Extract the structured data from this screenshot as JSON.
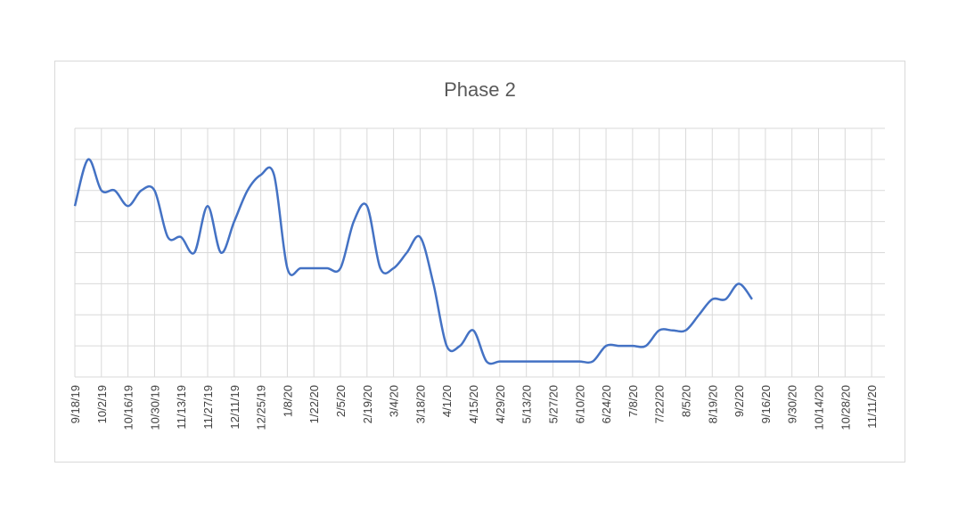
{
  "chart_data": {
    "type": "line",
    "title": "Phase 2",
    "xlabel": "",
    "ylabel": "",
    "grid": true,
    "legend": "none",
    "x_ticks": [
      "9/18/19",
      "10/2/19",
      "10/16/19",
      "10/30/19",
      "11/13/19",
      "11/27/19",
      "12/11/19",
      "12/25/19",
      "1/8/20",
      "1/22/20",
      "2/5/20",
      "2/19/20",
      "3/4/20",
      "3/18/20",
      "4/1/20",
      "4/15/20",
      "4/29/20",
      "5/13/20",
      "5/27/20",
      "6/10/20",
      "6/24/20",
      "7/8/20",
      "7/22/20",
      "8/5/20",
      "8/19/20",
      "9/2/20",
      "9/16/20",
      "9/30/20",
      "10/14/20",
      "10/28/20",
      "11/11/20"
    ],
    "y_gridlines": 8,
    "series": [
      {
        "color": "#4472c4",
        "x": [
          "9/18/19",
          "9/25/19",
          "10/2/19",
          "10/9/19",
          "10/16/19",
          "10/23/19",
          "10/30/19",
          "11/6/19",
          "11/13/19",
          "11/20/19",
          "11/27/19",
          "12/4/19",
          "12/11/19",
          "12/18/19",
          "12/25/19",
          "1/1/20",
          "1/8/20",
          "1/15/20",
          "1/22/20",
          "1/29/20",
          "2/5/20",
          "2/12/20",
          "2/19/20",
          "2/26/20",
          "3/4/20",
          "3/11/20",
          "3/18/20",
          "3/25/20",
          "4/1/20",
          "4/8/20",
          "4/15/20",
          "4/22/20",
          "4/29/20",
          "5/6/20",
          "5/13/20",
          "5/20/20",
          "5/27/20",
          "6/3/20",
          "6/10/20",
          "6/17/20",
          "6/24/20",
          "7/1/20",
          "7/8/20",
          "7/15/20",
          "7/22/20",
          "7/29/20",
          "8/5/20",
          "8/12/20",
          "8/19/20",
          "8/26/20",
          "9/2/20",
          "9/9/20"
        ],
        "values": [
          5.5,
          7.0,
          6.0,
          6.0,
          5.5,
          6.0,
          6.0,
          4.5,
          4.5,
          4.0,
          5.5,
          4.0,
          5.0,
          6.0,
          6.5,
          6.5,
          3.5,
          3.5,
          3.5,
          3.5,
          3.5,
          5.0,
          5.5,
          3.5,
          3.5,
          4.0,
          4.5,
          3.0,
          1.0,
          1.0,
          1.5,
          0.5,
          0.5,
          0.5,
          0.5,
          0.5,
          0.5,
          0.5,
          0.5,
          0.5,
          1.0,
          1.0,
          1.0,
          1.0,
          1.5,
          1.5,
          1.5,
          2.0,
          2.5,
          2.5,
          3.0,
          2.5
        ]
      }
    ]
  }
}
